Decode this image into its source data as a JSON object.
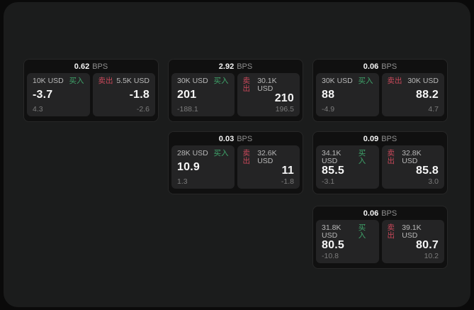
{
  "labels": {
    "bps_unit": "BPS",
    "buy": "买入",
    "sell": "卖出"
  },
  "colors": {
    "background": "#0a0a0a",
    "panel": "#1b1c1c",
    "card": "#101010",
    "tile": "#242425",
    "buy_accent": "#3fa56b",
    "sell_accent": "#c9485a"
  },
  "cards": [
    {
      "bps": "0.62",
      "buy": {
        "amount": "10K USD",
        "price": "-3.7",
        "delta": "4.3"
      },
      "sell": {
        "amount": "5.5K USD",
        "price": "-1.8",
        "delta": "-2.6"
      }
    },
    {
      "bps": "2.92",
      "buy": {
        "amount": "30K USD",
        "price": "201",
        "delta": "-188.1"
      },
      "sell": {
        "amount": "30.1K USD",
        "price": "210",
        "delta": "196.5"
      }
    },
    {
      "bps": "0.06",
      "buy": {
        "amount": "30K USD",
        "price": "88",
        "delta": "-4.9"
      },
      "sell": {
        "amount": "30K USD",
        "price": "88.2",
        "delta": "4.7"
      }
    },
    {
      "bps": "0.03",
      "buy": {
        "amount": "28K USD",
        "price": "10.9",
        "delta": "1.3"
      },
      "sell": {
        "amount": "32.6K USD",
        "price": "11",
        "delta": "-1.8"
      }
    },
    {
      "bps": "0.09",
      "buy": {
        "amount": "34.1K USD",
        "price": "85.5",
        "delta": "-3.1"
      },
      "sell": {
        "amount": "32.8K USD",
        "price": "85.8",
        "delta": "3.0"
      }
    },
    {
      "bps": "0.06",
      "buy": {
        "amount": "31.8K USD",
        "price": "80.5",
        "delta": "-10.8"
      },
      "sell": {
        "amount": "39.1K USD",
        "price": "80.7",
        "delta": "10.2"
      }
    }
  ]
}
